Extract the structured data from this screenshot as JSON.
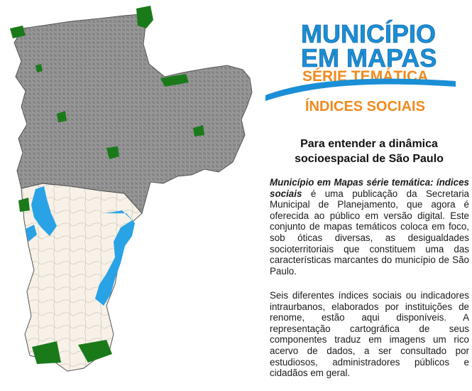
{
  "logo": {
    "line1": "MUNICÍPIO",
    "line2": "EM MAPAS",
    "line3": "SÉRIE TEMÁTICA",
    "line4": "ÍNDICES SOCIAIS",
    "colors": {
      "blue": "#1a8fd6",
      "orange": "#f08a1c"
    }
  },
  "heading": {
    "line1": "Para entender a dinâmica",
    "line2": "socioespacial de São Paulo"
  },
  "paragraph1": {
    "emphasis": "Município em Mapas  série temática: índices sociais",
    "text": " é uma publicação da Secretaria Municipal de Planejamento, que agora é oferecida ao público em versão digital. Este conjunto de mapas temáticos coloca em foco, sob óticas diversas, as desigualdades socioterritoriais que constituem uma das características marcantes do município de São Paulo."
  },
  "paragraph2": {
    "text": "Seis diferentes índices sociais ou indicadores intraurbanos, elaborados por instituições de renome, estão aqui disponíveis. A representação cartográfica de seus componentes traduz em imagens um rico acervo de dados, a ser consultado por estudiosos, administradores públicos e cidadãos em geral."
  },
  "map": {
    "icon": "sao-paulo-municipality-map",
    "colors": {
      "urban": "#8a8a8a",
      "rural": "#f7f1e8",
      "water": "#29a3e6",
      "parks": "#1a7a1a",
      "outline": "#555555"
    }
  }
}
